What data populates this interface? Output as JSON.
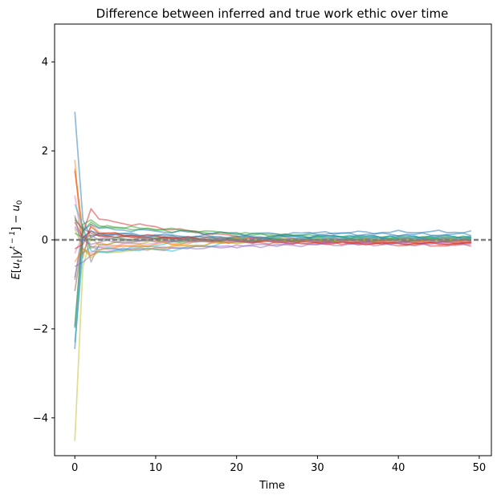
{
  "chart_data": {
    "type": "line",
    "title": "Difference between inferred and true work ethic over time",
    "xlabel": "Time",
    "ylabel": "E[u_t | y^{t−1}] − u_0",
    "ylabel_parts": {
      "E": "E",
      "bracket_open": "[",
      "u": "u",
      "t": "t",
      "bar": "|",
      "y": "y",
      "exp": "t − 1",
      "bracket_close": "]",
      "minus": " − ",
      "u0": "u",
      "zero": "0"
    },
    "xlim": [
      -2.5,
      51.5
    ],
    "ylim": [
      -4.85,
      4.85
    ],
    "xticks": [
      0,
      10,
      20,
      30,
      40,
      50
    ],
    "xtick_labels": [
      "0",
      "10",
      "20",
      "30",
      "40",
      "50"
    ],
    "yticks": [
      4,
      2,
      0,
      -2,
      -4
    ],
    "ytick_labels": [
      "4",
      "2",
      "0",
      "−2",
      "−4"
    ],
    "reference_line": {
      "y": 0,
      "style": "dashed",
      "color": "#808080"
    },
    "grid": false,
    "legend": "none",
    "n_points": 50,
    "alpha": 0.5,
    "series": [
      {
        "color": "#1f77b4",
        "start": 2.88,
        "v1": 0.45,
        "v2": 0.05,
        "final": 0.18,
        "dev": [
          0.15,
          0.05,
          -0.1,
          0.1,
          0.12,
          0.05
        ]
      },
      {
        "color": "#ff7f0e",
        "start": 1.8,
        "v1": -0.4,
        "v2": 0.35,
        "final": -0.08,
        "dev": [
          0.2,
          -0.1,
          0.15,
          0.08,
          -0.05,
          0.03
        ]
      },
      {
        "color": "#2ca02c",
        "start": 0.5,
        "v1": 0.2,
        "v2": 0.4,
        "final": 0.05,
        "dev": [
          0.3,
          0.25,
          0.2,
          0.15,
          0.1,
          0.05
        ]
      },
      {
        "color": "#d62728",
        "start": 1.55,
        "v1": 0.15,
        "v2": 0.7,
        "final": -0.12,
        "dev": [
          0.45,
          0.35,
          0.2,
          0.1,
          0.05,
          -0.05
        ]
      },
      {
        "color": "#9467bd",
        "start": -0.85,
        "v1": 0.1,
        "v2": -0.15,
        "final": -0.05,
        "dev": [
          -0.2,
          -0.25,
          -0.2,
          -0.15,
          -0.1,
          -0.08
        ]
      },
      {
        "color": "#8c564b",
        "start": -1.15,
        "v1": 0.05,
        "v2": 0.1,
        "final": 0.02,
        "dev": [
          0.1,
          0.05,
          0.02,
          0.0,
          0.01,
          0.02
        ]
      },
      {
        "color": "#e377c2",
        "start": 1.0,
        "v1": -0.2,
        "v2": -0.3,
        "final": 0.0,
        "dev": [
          -0.15,
          -0.05,
          0.05,
          0.02,
          0.0,
          -0.02
        ]
      },
      {
        "color": "#7f7f7f",
        "start": -0.9,
        "v1": 0.3,
        "v2": -0.5,
        "final": 0.03,
        "dev": [
          -0.1,
          0.05,
          0.1,
          0.05,
          0.02,
          0.0
        ]
      },
      {
        "color": "#bcbd22",
        "start": -4.52,
        "v1": -0.6,
        "v2": 0.05,
        "final": 0.02,
        "dev": [
          -0.1,
          -0.05,
          0.05,
          0.0,
          0.02,
          0.01
        ]
      },
      {
        "color": "#17becf",
        "start": -2.3,
        "v1": -0.3,
        "v2": -0.15,
        "final": 0.04,
        "dev": [
          -0.2,
          -0.3,
          -0.1,
          0.1,
          0.12,
          0.08
        ]
      },
      {
        "color": "#1f77b4",
        "start": -1.95,
        "v1": 0.2,
        "v2": 0.35,
        "final": 0.12,
        "dev": [
          0.25,
          0.2,
          0.15,
          0.2,
          0.15,
          0.12
        ]
      },
      {
        "color": "#ff7f0e",
        "start": 1.6,
        "v1": 0.1,
        "v2": -0.2,
        "final": -0.04,
        "dev": [
          -0.1,
          -0.2,
          -0.05,
          0.0,
          -0.05,
          -0.04
        ]
      },
      {
        "color": "#2ca02c",
        "start": -1.98,
        "v1": 0.35,
        "v2": 0.45,
        "final": 0.06,
        "dev": [
          0.3,
          0.28,
          0.2,
          0.12,
          0.08,
          0.06
        ]
      },
      {
        "color": "#d62728",
        "start": 0.4,
        "v1": 0.05,
        "v2": 0.2,
        "final": -0.06,
        "dev": [
          0.1,
          0.05,
          -0.05,
          -0.08,
          -0.1,
          -0.06
        ]
      },
      {
        "color": "#9467bd",
        "start": -0.6,
        "v1": -0.5,
        "v2": -0.35,
        "final": -0.1,
        "dev": [
          -0.25,
          -0.2,
          -0.18,
          -0.12,
          -0.1,
          -0.1
        ]
      },
      {
        "color": "#8c564b",
        "start": 0.45,
        "v1": 0.25,
        "v2": 0.15,
        "final": -0.03,
        "dev": [
          0.1,
          0.05,
          0.0,
          -0.02,
          -0.03,
          -0.03
        ]
      },
      {
        "color": "#e377c2",
        "start": -0.3,
        "v1": 0.1,
        "v2": 0.0,
        "final": -0.05,
        "dev": [
          0.05,
          0.0,
          -0.05,
          -0.05,
          -0.04,
          -0.05
        ]
      },
      {
        "color": "#7f7f7f",
        "start": 0.55,
        "v1": -0.3,
        "v2": 0.1,
        "final": 0.01,
        "dev": [
          0.0,
          0.05,
          0.02,
          0.0,
          0.01,
          0.01
        ]
      },
      {
        "color": "#bcbd22",
        "start": 0.25,
        "v1": -0.2,
        "v2": -0.4,
        "final": 0.0,
        "dev": [
          -0.3,
          -0.2,
          -0.05,
          0.0,
          0.02,
          0.0
        ]
      },
      {
        "color": "#17becf",
        "start": 0.8,
        "v1": 0.3,
        "v2": -0.25,
        "final": 0.05,
        "dev": [
          -0.3,
          -0.1,
          0.05,
          0.12,
          0.08,
          0.05
        ]
      },
      {
        "color": "#1f77b4",
        "start": -2.45,
        "v1": 0.05,
        "v2": 0.2,
        "final": 0.08,
        "dev": [
          0.15,
          0.1,
          0.05,
          0.08,
          0.1,
          0.08
        ]
      },
      {
        "color": "#ff7f0e",
        "start": -0.5,
        "v1": -0.2,
        "v2": -0.35,
        "final": -0.02,
        "dev": [
          -0.2,
          -0.1,
          0.0,
          -0.02,
          -0.03,
          -0.02
        ]
      },
      {
        "color": "#2ca02c",
        "start": 0.15,
        "v1": 0.05,
        "v2": 0.0,
        "final": 0.0,
        "dev": [
          0.02,
          0.0,
          -0.02,
          0.0,
          0.01,
          0.0
        ]
      },
      {
        "color": "#d62728",
        "start": -0.2,
        "v1": -0.1,
        "v2": 0.3,
        "final": -0.08,
        "dev": [
          0.15,
          0.1,
          0.0,
          -0.05,
          -0.08,
          -0.08
        ]
      },
      {
        "color": "#9467bd",
        "start": 0.3,
        "v1": 0.0,
        "v2": -0.1,
        "final": -0.02,
        "dev": [
          -0.05,
          -0.03,
          -0.02,
          -0.02,
          -0.02,
          -0.02
        ]
      }
    ]
  }
}
